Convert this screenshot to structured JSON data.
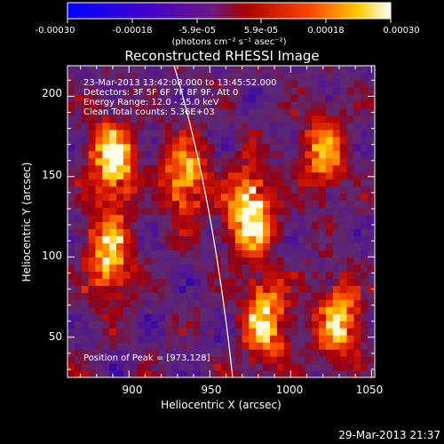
{
  "colorbar": {
    "tick_labels": [
      "-0.00030",
      "-0.00018",
      "-5.9e-05",
      "5.9e-05",
      "0.00018",
      "0.00030"
    ],
    "units": "(photons cm⁻² s⁻¹ asec⁻²)",
    "range": [
      -0.0003,
      0.0003
    ]
  },
  "chart_data": {
    "type": "heatmap",
    "title": "Reconstructed RHESSI Image",
    "xlabel": "Heliocentric X (arcsec)",
    "ylabel": "Heliocentric Y (arcsec)",
    "xlim": [
      862,
      1052
    ],
    "ylim": [
      25,
      219
    ],
    "xticks": [
      900,
      950,
      1000,
      1050
    ],
    "yticks": [
      50,
      100,
      150,
      200
    ],
    "annotations": [
      "23-Mar-2013 13:42:08.000 to 13:45:52.000",
      "Detectors: 3F 5F 6F 7F 8F 9F, Att 0",
      "Energy Range: 12.0 - 25.0 keV",
      "Clean    Total counts: 5.36E+03"
    ],
    "peak_label": "Position of Peak = [973,128]",
    "peak": [
      973,
      128
    ],
    "bright_regions": [
      {
        "x": 890,
        "y": 160,
        "level": 0.85
      },
      {
        "x": 888,
        "y": 100,
        "level": 0.75
      },
      {
        "x": 935,
        "y": 150,
        "level": 0.7
      },
      {
        "x": 975,
        "y": 128,
        "level": 1.0
      },
      {
        "x": 985,
        "y": 60,
        "level": 0.8
      },
      {
        "x": 1020,
        "y": 165,
        "level": 0.6
      },
      {
        "x": 1030,
        "y": 60,
        "level": 0.75
      }
    ],
    "grid": false
  },
  "footer": {
    "timestamp": "29-Mar-2013 21:37"
  }
}
